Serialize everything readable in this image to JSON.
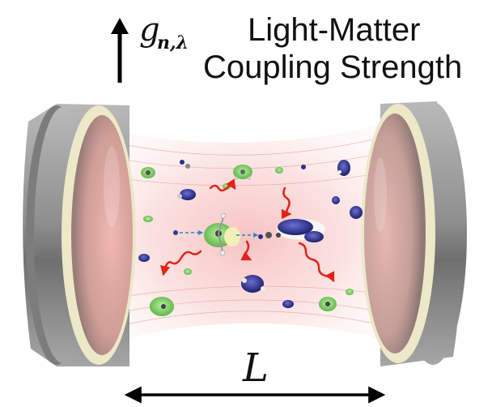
{
  "coupling": {
    "symbol_main": "g",
    "symbol_sub": "n,λ",
    "title_line1": "Light-Matter",
    "title_line2": "Coupling Strength"
  },
  "cavity": {
    "length_symbol": "L"
  },
  "colors": {
    "mirror": "#9a9a9a",
    "mirror_rim": "#ece8c8",
    "cavity_glow": "#f2a8a8",
    "photon": "#e2231a",
    "molecule_green": "#7fcf6a",
    "molecule_blue": "#2b2f8f",
    "arrow": "#000000"
  },
  "icons": [
    "up-arrow-icon",
    "double-arrow-icon",
    "photon-wave-icon",
    "molecule-icon"
  ]
}
